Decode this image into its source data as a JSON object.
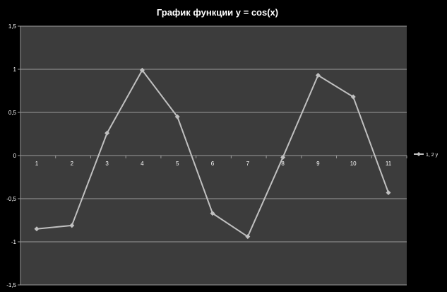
{
  "chart_data": {
    "type": "line",
    "title": "График функции y = cos(x)",
    "xlabel": "",
    "ylabel": "",
    "categories": [
      "1",
      "2",
      "3",
      "4",
      "5",
      "6",
      "7",
      "8",
      "9",
      "10",
      "11"
    ],
    "y_ticks": [
      "1,5",
      "1",
      "0,5",
      "0",
      "-0,5",
      "-1",
      "-1,5"
    ],
    "ylim": [
      -1.5,
      1.5
    ],
    "grid": true,
    "legend_position": "right",
    "series": [
      {
        "name": "1, 2 y",
        "values": [
          -0.85,
          -0.81,
          0.26,
          0.99,
          0.45,
          -0.67,
          -0.94,
          -0.02,
          0.93,
          0.68,
          -0.43
        ]
      }
    ],
    "colors": {
      "background": "#000000",
      "plot_area": "#3c3c3c",
      "gridline": "#9a9a9a",
      "series": "#c0c0c0",
      "text": "#ffffff"
    }
  }
}
